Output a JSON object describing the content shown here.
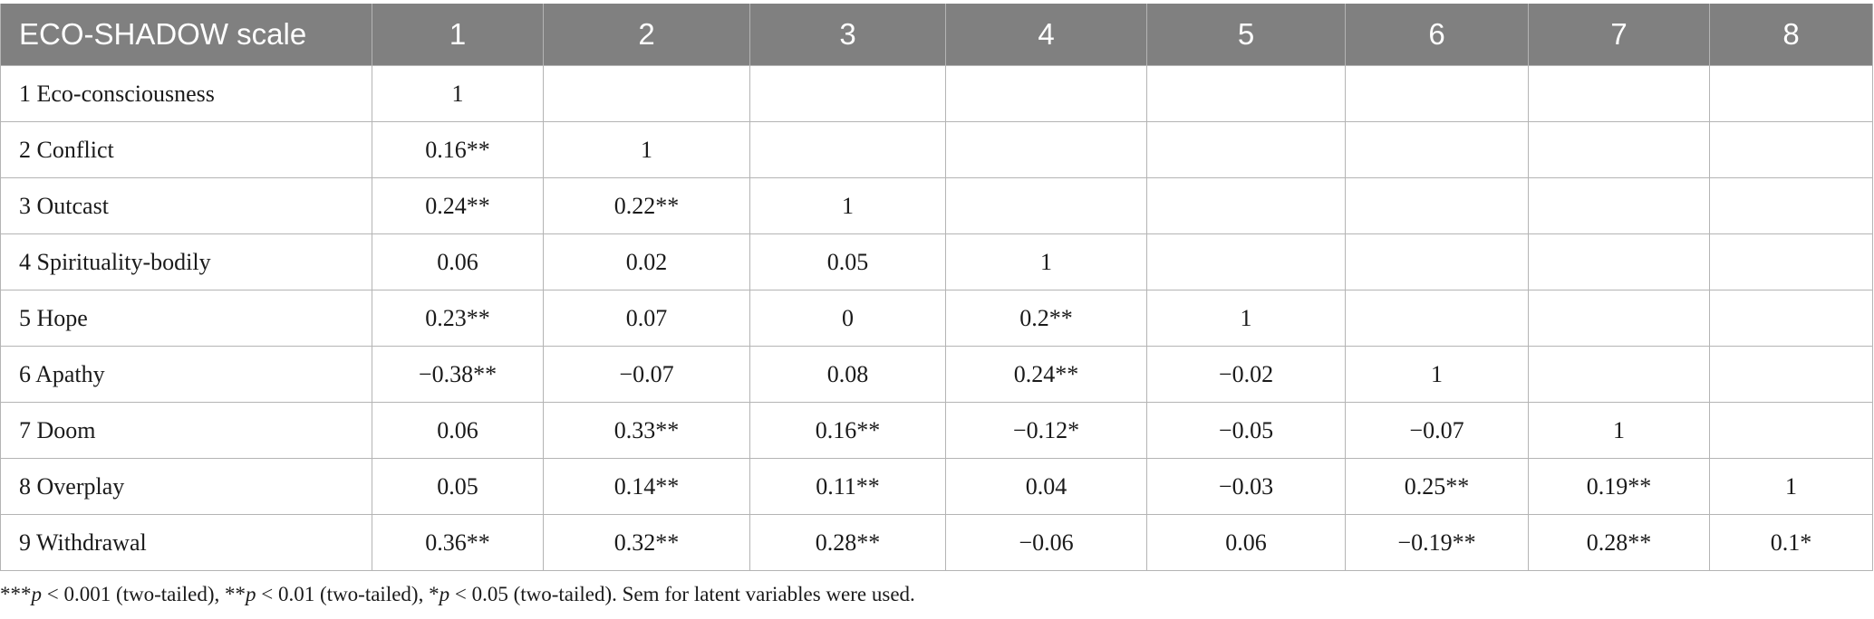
{
  "table": {
    "headers": [
      "ECO-SHADOW scale",
      "1",
      "2",
      "3",
      "4",
      "5",
      "6",
      "7",
      "8"
    ],
    "rows": [
      [
        "1 Eco-consciousness",
        "1",
        "",
        "",
        "",
        "",
        "",
        "",
        ""
      ],
      [
        "2 Conflict",
        "0.16**",
        "1",
        "",
        "",
        "",
        "",
        "",
        ""
      ],
      [
        "3 Outcast",
        "0.24**",
        "0.22**",
        "1",
        "",
        "",
        "",
        "",
        ""
      ],
      [
        "4 Spirituality-bodily",
        "0.06",
        "0.02",
        "0.05",
        "1",
        "",
        "",
        "",
        ""
      ],
      [
        "5 Hope",
        "0.23**",
        "0.07",
        "0",
        "0.2**",
        "1",
        "",
        "",
        ""
      ],
      [
        "6 Apathy",
        "−0.38**",
        "−0.07",
        "0.08",
        "0.24**",
        "−0.02",
        "1",
        "",
        ""
      ],
      [
        "7 Doom",
        "0.06",
        "0.33**",
        "0.16**",
        "−0.12*",
        "−0.05",
        "−0.07",
        "1",
        ""
      ],
      [
        "8 Overplay",
        "0.05",
        "0.14**",
        "0.11**",
        "0.04",
        "−0.03",
        "0.25**",
        "0.19**",
        "1"
      ],
      [
        "9 Withdrawal",
        "0.36**",
        "0.32**",
        "0.28**",
        "−0.06",
        "0.06",
        "−0.19**",
        "0.28**",
        "0.1*"
      ]
    ]
  },
  "footnote": {
    "s1": "***",
    "p1": "p",
    "s2": " < 0.001 (two-tailed), **",
    "p2": "p",
    "s3": " < 0.01 (two-tailed), *",
    "p3": "p",
    "s4": " < 0.05 (two-tailed). Sem for latent variables were used."
  },
  "colors": {
    "header_bg": "#808080",
    "header_text": "#ffffff",
    "grid": "#b4b4b4",
    "text": "#1a1a1a"
  }
}
